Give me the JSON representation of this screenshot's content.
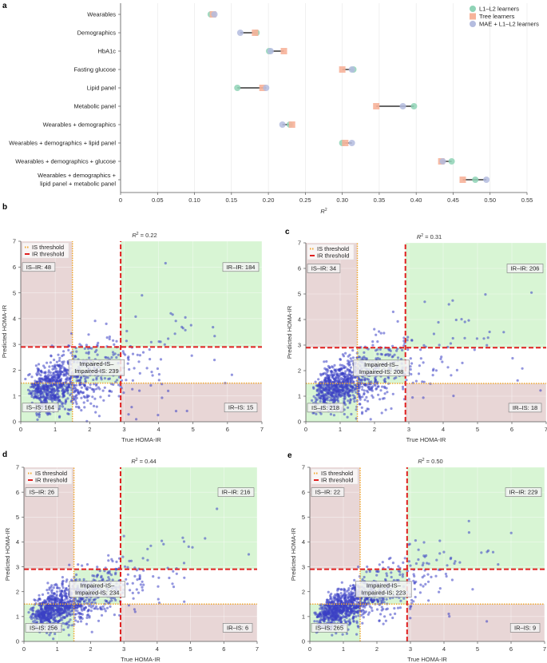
{
  "chart_data": [
    {
      "panel": "a",
      "type": "scatter",
      "subtype": "dumbbell",
      "title": "",
      "xlabel": "R²",
      "ylabel": "",
      "xlim": [
        0,
        0.55
      ],
      "xticks": [
        "0",
        "0.05",
        "0.10",
        "0.15",
        "0.20",
        "0.25",
        "0.30",
        "0.35",
        "0.40",
        "0.45",
        "0.50",
        "0.55"
      ],
      "grid": true,
      "legend_position": "top-right",
      "categories": [
        [
          "Wearables"
        ],
        [
          "Demographics"
        ],
        [
          "HbA1c"
        ],
        [
          "Fasting glucose"
        ],
        [
          "Lipid panel"
        ],
        [
          "Metabolic panel"
        ],
        [
          "Wearables + demographics"
        ],
        [
          "Wearables + demographics + lipid panel"
        ],
        [
          "Wearables + demographics + glucose"
        ],
        [
          "Wearables + demographics +",
          "lipid panel + metabolic panel"
        ]
      ],
      "series": [
        {
          "name": "L1–L2 learners",
          "marker": "circle",
          "color": "#8fd3b6",
          "values": [
            0.122,
            0.184,
            0.201,
            0.315,
            0.158,
            0.397,
            0.229,
            0.3,
            0.448,
            0.48
          ]
        },
        {
          "name": "Tree learners",
          "marker": "square",
          "color": "#f7b39a",
          "values": [
            0.125,
            0.182,
            0.221,
            0.3,
            0.192,
            0.346,
            0.232,
            0.304,
            0.434,
            0.463
          ]
        },
        {
          "name": "MAE + L1–L2 learners",
          "marker": "circle",
          "color": "#b4bcdf",
          "values": [
            0.127,
            0.162,
            0.203,
            0.313,
            0.197,
            0.382,
            0.219,
            0.313,
            0.436,
            0.495
          ]
        }
      ]
    },
    {
      "panel": "b",
      "type": "scatter",
      "title": "R² = 0.22",
      "r2": "0.22",
      "xlabel": "True HOMA-IR",
      "ylabel": "Predicted HOMA-IR",
      "xlim": [
        0,
        7
      ],
      "ylim": [
        0,
        7
      ],
      "xticks": [
        "0",
        "1",
        "2",
        "3",
        "4",
        "5",
        "6",
        "7"
      ],
      "yticks": [
        "0",
        "1",
        "2",
        "3",
        "4",
        "5",
        "6",
        "7"
      ],
      "is_threshold": 1.5,
      "ir_threshold": 2.9,
      "legend": [
        "IS threshold",
        "IR threshold"
      ],
      "legend_position": "top-left",
      "quadrant_labels": {
        "is_ir": "IS–IR: 48",
        "ir_ir": "IR–IR: 184",
        "impaired_1": "Impaired-IS–",
        "impaired_2": "Impaired-IS: 239",
        "is_is": "IS–IS: 164",
        "ir_is": "IR–IS: 15"
      },
      "quadrant_counts": {
        "is_ir": 48,
        "ir_ir": 184,
        "impaired_impaired": 239,
        "is_is": 164,
        "ir_is": 15
      },
      "seed": 11,
      "spread": 0.95,
      "bias": 0.55
    },
    {
      "panel": "c",
      "type": "scatter",
      "title": "R² = 0.31",
      "r2": "0.31",
      "xlabel": "True HOMA-IR",
      "ylabel": "Predicted HOMA-IR",
      "xlim": [
        0,
        7
      ],
      "ylim": [
        0,
        7
      ],
      "xticks": [
        "0",
        "1",
        "2",
        "3",
        "4",
        "5",
        "6",
        "7"
      ],
      "yticks": [
        "0",
        "1",
        "2",
        "3",
        "4",
        "5",
        "6",
        "7"
      ],
      "is_threshold": 1.5,
      "ir_threshold": 2.9,
      "legend": [
        "IS threshold",
        "IR threshold"
      ],
      "legend_position": "top-left",
      "quadrant_labels": {
        "is_ir": "IS–IR: 34",
        "ir_ir": "IR–IR: 206",
        "impaired_1": "Impaired-IS–",
        "impaired_2": "Impaired-IS: 208",
        "is_is": "IS–IS: 218",
        "ir_is": "IR–IS: 18"
      },
      "quadrant_counts": {
        "is_ir": 34,
        "ir_ir": 206,
        "impaired_impaired": 208,
        "is_is": 218,
        "ir_is": 18
      },
      "seed": 23,
      "spread": 0.85,
      "bias": 0.45
    },
    {
      "panel": "d",
      "type": "scatter",
      "title": "R² = 0.44",
      "r2": "0.44",
      "xlabel": "True HOMA-IR",
      "ylabel": "Predicted HOMA-IR",
      "xlim": [
        0,
        7
      ],
      "ylim": [
        0,
        7
      ],
      "xticks": [
        "0",
        "1",
        "2",
        "3",
        "4",
        "5",
        "6",
        "7"
      ],
      "yticks": [
        "0",
        "1",
        "2",
        "3",
        "4",
        "5",
        "6",
        "7"
      ],
      "is_threshold": 1.5,
      "ir_threshold": 2.9,
      "legend": [
        "IS threshold",
        "IR threshold"
      ],
      "legend_position": "top-left",
      "quadrant_labels": {
        "is_ir": "IS–IR: 26",
        "ir_ir": "IR–IR: 216",
        "impaired_1": "Impaired-IS–",
        "impaired_2": "Impaired-IS: 234",
        "is_is": "IS–IS: 256",
        "ir_is": "IR–IS: 6"
      },
      "quadrant_counts": {
        "is_ir": 26,
        "ir_ir": 216,
        "impaired_impaired": 234,
        "is_is": 256,
        "ir_is": 6
      },
      "seed": 37,
      "spread": 0.75,
      "bias": 0.35
    },
    {
      "panel": "e",
      "type": "scatter",
      "title": "R² = 0.50",
      "r2": "0.50",
      "xlabel": "True HOMA-IR",
      "ylabel": "Predicted HOMA-IR",
      "xlim": [
        0,
        7
      ],
      "ylim": [
        0,
        7
      ],
      "xticks": [
        "0",
        "1",
        "2",
        "3",
        "4",
        "5",
        "6",
        "7"
      ],
      "yticks": [
        "0",
        "1",
        "2",
        "3",
        "4",
        "5",
        "6",
        "7"
      ],
      "is_threshold": 1.5,
      "ir_threshold": 2.9,
      "legend": [
        "IS threshold",
        "IR threshold"
      ],
      "legend_position": "top-left",
      "quadrant_labels": {
        "is_ir": "IS–IR: 22",
        "ir_ir": "IR–IR: 229",
        "impaired_1": "Impaired-IS–",
        "impaired_2": "Impaired-IS: 223",
        "is_is": "IS–IS: 265",
        "ir_is": "IR–IS: 9"
      },
      "quadrant_counts": {
        "is_ir": 22,
        "ir_ir": 229,
        "impaired_impaired": 223,
        "is_is": 265,
        "ir_is": 9
      },
      "seed": 53,
      "spread": 0.7,
      "bias": 0.3
    }
  ],
  "colors": {
    "point": "#3b3fc4",
    "ir_line": "#e02020",
    "is_line": "#f0a830",
    "agree_fill": "#d8f5d4",
    "disagree_fill": "#e8d6d6",
    "axis": "#555555",
    "grid": "#e6e6e6",
    "connector": "#333333"
  },
  "panel_letters": [
    "a",
    "b",
    "c",
    "d",
    "e"
  ]
}
